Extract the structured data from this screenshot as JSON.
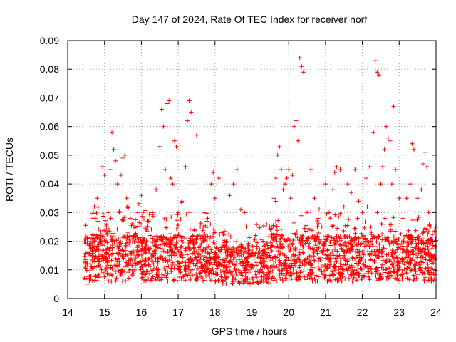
{
  "chart_data": {
    "type": "scatter",
    "title": "Day 147 of 2024, Rate Of TEC Index for receiver norf",
    "xlabel": "GPS time / hours",
    "ylabel": "ROTI / TECUs",
    "xlim": [
      14,
      24
    ],
    "ylim": [
      0,
      0.09
    ],
    "xticks": [
      "14",
      "15",
      "16",
      "17",
      "18",
      "19",
      "20",
      "21",
      "22",
      "23",
      "24"
    ],
    "yticks": [
      "0",
      "0.01",
      "0.02",
      "0.03",
      "0.04",
      "0.05",
      "0.06",
      "0.07",
      "0.08",
      "0.09"
    ],
    "grid": true,
    "marker": "+",
    "color": "#ff0000",
    "series": [
      {
        "values": [
          [
            14.5,
            0.012
          ],
          [
            14.55,
            0.005
          ],
          [
            14.6,
            0.018
          ],
          [
            14.7,
            0.022
          ],
          [
            14.75,
            0.028
          ],
          [
            14.8,
            0.035
          ],
          [
            14.85,
            0.014
          ],
          [
            14.9,
            0.02
          ],
          [
            14.95,
            0.046
          ],
          [
            15.0,
            0.043
          ],
          [
            15.05,
            0.025
          ],
          [
            15.1,
            0.03
          ],
          [
            15.15,
            0.045
          ],
          [
            15.2,
            0.058
          ],
          [
            15.25,
            0.052
          ],
          [
            15.3,
            0.048
          ],
          [
            15.35,
            0.04
          ],
          [
            15.4,
            0.03
          ],
          [
            15.45,
            0.043
          ],
          [
            15.5,
            0.049
          ],
          [
            15.55,
            0.05
          ],
          [
            15.6,
            0.035
          ],
          [
            15.7,
            0.028
          ],
          [
            15.8,
            0.025
          ],
          [
            15.9,
            0.03
          ],
          [
            16.0,
            0.036
          ],
          [
            16.05,
            0.03
          ],
          [
            16.1,
            0.07
          ],
          [
            16.2,
            0.027
          ],
          [
            16.3,
            0.03
          ],
          [
            16.4,
            0.038
          ],
          [
            16.5,
            0.053
          ],
          [
            16.55,
            0.066
          ],
          [
            16.6,
            0.06
          ],
          [
            16.65,
            0.045
          ],
          [
            16.7,
            0.068
          ],
          [
            16.75,
            0.069
          ],
          [
            16.8,
            0.042
          ],
          [
            16.85,
            0.04
          ],
          [
            16.9,
            0.055
          ],
          [
            16.95,
            0.053
          ],
          [
            17.0,
            0.03
          ],
          [
            17.1,
            0.034
          ],
          [
            17.2,
            0.046
          ],
          [
            17.25,
            0.062
          ],
          [
            17.3,
            0.069
          ],
          [
            17.35,
            0.065
          ],
          [
            17.4,
            0.022
          ],
          [
            17.5,
            0.057
          ],
          [
            17.6,
            0.025
          ],
          [
            17.7,
            0.03
          ],
          [
            17.8,
            0.028
          ],
          [
            17.9,
            0.04
          ],
          [
            17.95,
            0.044
          ],
          [
            18.0,
            0.035
          ],
          [
            18.1,
            0.042
          ],
          [
            18.2,
            0.023
          ],
          [
            18.3,
            0.02
          ],
          [
            18.4,
            0.036
          ],
          [
            18.5,
            0.04
          ],
          [
            18.6,
            0.045
          ],
          [
            18.7,
            0.031
          ],
          [
            18.8,
            0.03
          ],
          [
            18.9,
            0.018
          ],
          [
            19.0,
            0.015
          ],
          [
            19.1,
            0.022
          ],
          [
            19.2,
            0.025
          ],
          [
            19.3,
            0.02
          ],
          [
            19.4,
            0.026
          ],
          [
            19.5,
            0.024
          ],
          [
            19.6,
            0.035
          ],
          [
            19.65,
            0.042
          ],
          [
            19.7,
            0.05
          ],
          [
            19.75,
            0.053
          ],
          [
            19.8,
            0.045
          ],
          [
            19.85,
            0.038
          ],
          [
            19.9,
            0.04
          ],
          [
            19.95,
            0.042
          ],
          [
            20.0,
            0.045
          ],
          [
            20.05,
            0.035
          ],
          [
            20.1,
            0.043
          ],
          [
            20.15,
            0.06
          ],
          [
            20.2,
            0.062
          ],
          [
            20.25,
            0.055
          ],
          [
            20.3,
            0.084
          ],
          [
            20.35,
            0.081
          ],
          [
            20.4,
            0.079
          ],
          [
            20.5,
            0.03
          ],
          [
            20.6,
            0.045
          ],
          [
            20.7,
            0.035
          ],
          [
            20.8,
            0.028
          ],
          [
            20.9,
            0.025
          ],
          [
            21.0,
            0.04
          ],
          [
            21.1,
            0.03
          ],
          [
            21.2,
            0.038
          ],
          [
            21.25,
            0.044
          ],
          [
            21.3,
            0.046
          ],
          [
            21.4,
            0.045
          ],
          [
            21.5,
            0.032
          ],
          [
            21.6,
            0.04
          ],
          [
            21.7,
            0.037
          ],
          [
            21.8,
            0.045
          ],
          [
            21.9,
            0.034
          ],
          [
            22.0,
            0.03
          ],
          [
            22.1,
            0.042
          ],
          [
            22.2,
            0.046
          ],
          [
            22.3,
            0.058
          ],
          [
            22.35,
            0.083
          ],
          [
            22.4,
            0.079
          ],
          [
            22.45,
            0.078
          ],
          [
            22.5,
            0.04
          ],
          [
            22.55,
            0.046
          ],
          [
            22.6,
            0.052
          ],
          [
            22.65,
            0.06
          ],
          [
            22.7,
            0.056
          ],
          [
            22.75,
            0.055
          ],
          [
            22.8,
            0.04
          ],
          [
            22.85,
            0.067
          ],
          [
            22.9,
            0.045
          ],
          [
            23.0,
            0.035
          ],
          [
            23.1,
            0.028
          ],
          [
            23.2,
            0.035
          ],
          [
            23.3,
            0.04
          ],
          [
            23.35,
            0.054
          ],
          [
            23.4,
            0.052
          ],
          [
            23.5,
            0.035
          ],
          [
            23.6,
            0.038
          ],
          [
            23.65,
            0.047
          ],
          [
            23.7,
            0.051
          ],
          [
            23.75,
            0.046
          ],
          [
            23.8,
            0.03
          ],
          [
            23.85,
            0.025
          ],
          [
            23.9,
            0.02
          ],
          [
            23.95,
            0.015
          ]
        ]
      }
    ]
  }
}
